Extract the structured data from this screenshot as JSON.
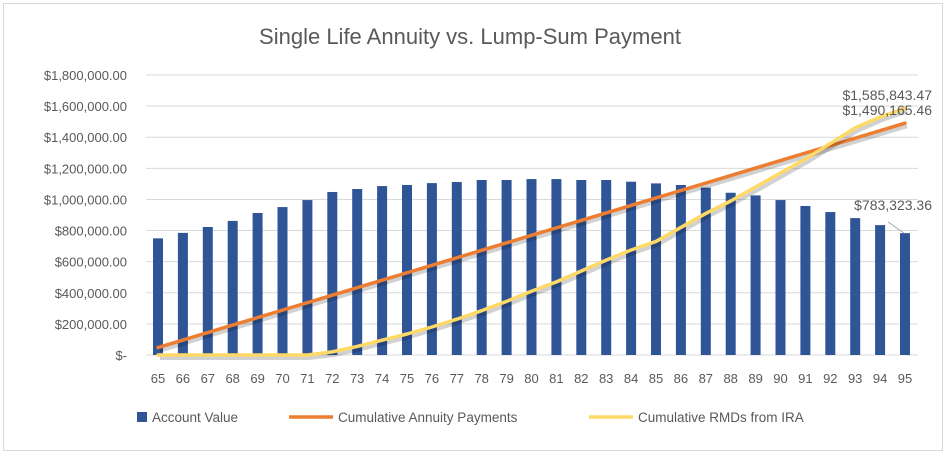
{
  "chart_data": {
    "type": "bar+line",
    "title": "Single Life Annuity vs. Lump-Sum Payment",
    "xlabel": "",
    "ylabel": "",
    "ylim": [
      0,
      1800000
    ],
    "yticks": [
      "$-",
      "$200,000.00",
      "$400,000.00",
      "$600,000.00",
      "$800,000.00",
      "$1,000,000.00",
      "$1,200,000.00",
      "$1,400,000.00",
      "$1,600,000.00",
      "$1,800,000.00"
    ],
    "grid": true,
    "legend": "bottom",
    "categories": [
      "65",
      "66",
      "67",
      "68",
      "69",
      "70",
      "71",
      "72",
      "73",
      "74",
      "75",
      "76",
      "77",
      "78",
      "79",
      "80",
      "81",
      "82",
      "83",
      "84",
      "85",
      "86",
      "87",
      "88",
      "89",
      "90",
      "91",
      "92",
      "93",
      "94",
      "95"
    ],
    "series": [
      {
        "name": "Account Value",
        "type": "bar",
        "color": "#2F5597",
        "values": [
          750000,
          785000,
          823000,
          862000,
          913000,
          951000,
          996000,
          1048000,
          1067000,
          1086000,
          1093000,
          1105000,
          1112000,
          1125000,
          1125000,
          1131000,
          1131000,
          1125000,
          1125000,
          1114000,
          1103000,
          1093000,
          1076000,
          1043000,
          1026000,
          996000,
          958000,
          919000,
          880000,
          835000,
          783323.36
        ]
      },
      {
        "name": "Cumulative Annuity Payments",
        "type": "line",
        "color": "#ED7D31",
        "values": [
          48070,
          96140,
          144210,
          192280,
          240350,
          288420,
          336490,
          384560,
          432630,
          480700,
          528770,
          576840,
          624910,
          672980,
          721050,
          769120,
          817190,
          865260,
          913330,
          961400,
          1009470,
          1057540,
          1105610,
          1153680,
          1201750,
          1249820,
          1297890,
          1345960,
          1394030,
          1442100,
          1490165.46
        ]
      },
      {
        "name": "Cumulative RMDs from IRA",
        "type": "line",
        "color": "#FFD966",
        "values": [
          0,
          0,
          0,
          0,
          0,
          0,
          0,
          20000,
          55000,
          95000,
          135000,
          180000,
          230000,
          285000,
          345000,
          410000,
          470000,
          540000,
          610000,
          675000,
          730000,
          820000,
          910000,
          990000,
          1080000,
          1170000,
          1260000,
          1360000,
          1460000,
          1530000,
          1585843.47
        ]
      }
    ],
    "annotations": [
      "$1,585,843.47",
      "$1,490,165.46",
      "$783,323.36"
    ]
  }
}
